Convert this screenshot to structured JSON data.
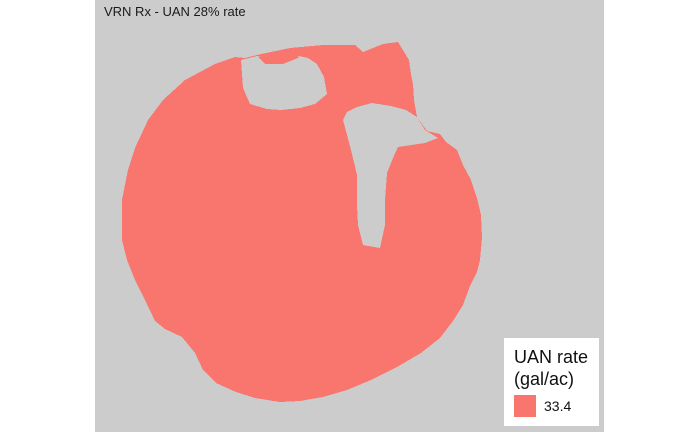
{
  "map": {
    "title": "VRN Rx - UAN 28% rate",
    "background_color": "#cccccc",
    "field_color": "#f8766d"
  },
  "legend": {
    "title_line1": "UAN rate",
    "title_line2": "(gal/ac)",
    "entries": [
      {
        "label": "33.4",
        "color": "#f8766d"
      }
    ]
  }
}
